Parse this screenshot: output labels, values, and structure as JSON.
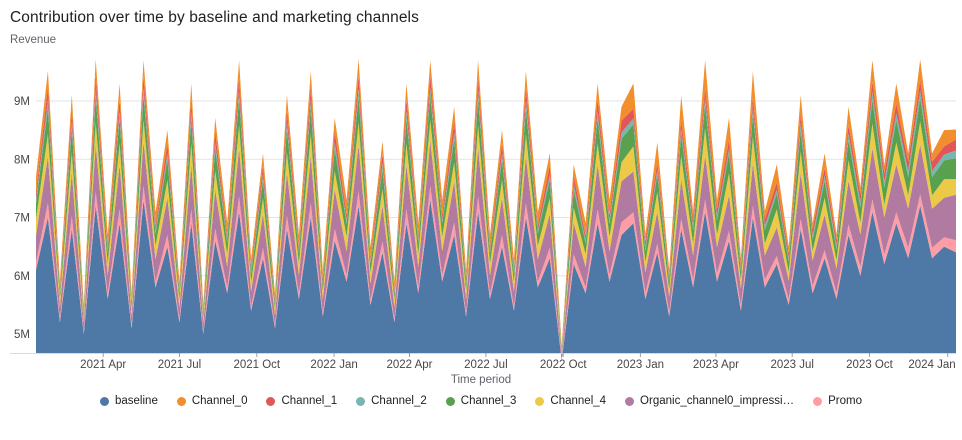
{
  "chart_data": {
    "type": "area",
    "stacked": true,
    "title": "Contribution over time by baseline and marketing channels",
    "ylabel": "Revenue",
    "xlabel": "Time period",
    "value_unit": "millions",
    "ylim": [
      4.67,
      9.82
    ],
    "grid": "horizontal",
    "legend_position": "bottom",
    "x_range": {
      "start": "2021 Jan",
      "end": "2024 Jan",
      "points": 78,
      "interval": "biweekly"
    },
    "y_ticks": [
      {
        "label": "5M",
        "value": 5
      },
      {
        "label": "6M",
        "value": 6
      },
      {
        "label": "7M",
        "value": 7
      },
      {
        "label": "8M",
        "value": 8
      },
      {
        "label": "9M",
        "value": 9
      }
    ],
    "x_ticks": [
      {
        "label": "2021 Apr",
        "f": 0.073
      },
      {
        "label": "2021 Jul",
        "f": 0.156
      },
      {
        "label": "2021 Oct",
        "f": 0.24
      },
      {
        "label": "2022 Jan",
        "f": 0.324
      },
      {
        "label": "2022 Apr",
        "f": 0.406
      },
      {
        "label": "2022 Jul",
        "f": 0.489
      },
      {
        "label": "2022 Oct",
        "f": 0.573
      },
      {
        "label": "2023 Jan",
        "f": 0.657
      },
      {
        "label": "2023 Apr",
        "f": 0.739
      },
      {
        "label": "2023 Jul",
        "f": 0.822
      },
      {
        "label": "2023 Oct",
        "f": 0.906
      },
      {
        "label": "2024 Jan",
        "f": 0.991
      }
    ],
    "stack_order_bottom_to_top": [
      "baseline",
      "Promo",
      "Organic_channel0_impressi…",
      "Channel_4",
      "Channel_3",
      "Channel_2",
      "Channel_1",
      "Channel_0"
    ],
    "series": [
      {
        "name": "baseline",
        "color": "#4e79a7",
        "values": [
          6.1,
          7.0,
          5.2,
          6.8,
          5.0,
          7.2,
          5.6,
          6.9,
          5.1,
          7.3,
          5.8,
          6.5,
          5.2,
          6.9,
          5.0,
          6.6,
          5.7,
          7.1,
          5.4,
          6.3,
          5.1,
          6.8,
          5.6,
          7.0,
          5.3,
          6.6,
          5.9,
          7.2,
          5.5,
          6.4,
          5.2,
          6.9,
          5.7,
          7.3,
          5.9,
          6.7,
          5.3,
          7.1,
          5.6,
          6.5,
          5.4,
          7.0,
          5.8,
          6.3,
          4.55,
          6.2,
          5.7,
          6.9,
          5.9,
          6.7,
          6.9,
          5.6,
          6.4,
          5.3,
          6.8,
          5.8,
          7.1,
          5.9,
          6.6,
          5.4,
          7.0,
          5.8,
          6.2,
          5.5,
          6.8,
          5.7,
          6.3,
          5.6,
          6.7,
          6.0,
          7.1,
          6.2,
          6.9,
          6.3,
          7.2,
          6.3,
          6.5,
          6.4
        ]
      },
      {
        "name": "Channel_0",
        "color": "#f28e2b",
        "values": [
          0.29,
          0.28,
          0.13,
          0.25,
          0.09,
          0.28,
          0.2,
          0.26,
          0.11,
          0.26,
          0.23,
          0.22,
          0.13,
          0.26,
          0.09,
          0.23,
          0.22,
          0.29,
          0.16,
          0.2,
          0.11,
          0.25,
          0.2,
          0.28,
          0.14,
          0.23,
          0.25,
          0.28,
          0.18,
          0.21,
          0.13,
          0.26,
          0.22,
          0.26,
          0.25,
          0.24,
          0.14,
          0.29,
          0.2,
          0.22,
          0.16,
          0.28,
          0.23,
          0.2,
          0.05,
          0.19,
          0.22,
          0.26,
          0.25,
          0.24,
          0.43,
          0.12,
          0.34,
          0.09,
          0.41,
          0.14,
          0.47,
          0.15,
          0.38,
          0.1,
          0.45,
          0.14,
          0.31,
          0.11,
          0.32,
          0.1,
          0.25,
          0.09,
          0.31,
          0.12,
          0.36,
          0.14,
          0.34,
          0.14,
          0.35,
          0.14,
          0.28,
          0.17
        ]
      },
      {
        "name": "Channel_1",
        "color": "#e15759",
        "values": [
          0.11,
          0.23,
          0.05,
          0.21,
          0.04,
          0.23,
          0.08,
          0.22,
          0.04,
          0.22,
          0.09,
          0.18,
          0.05,
          0.22,
          0.04,
          0.19,
          0.08,
          0.23,
          0.06,
          0.16,
          0.04,
          0.21,
          0.08,
          0.23,
          0.06,
          0.19,
          0.1,
          0.23,
          0.07,
          0.17,
          0.05,
          0.22,
          0.08,
          0.22,
          0.1,
          0.2,
          0.06,
          0.23,
          0.08,
          0.18,
          0.06,
          0.23,
          0.09,
          0.16,
          0.02,
          0.15,
          0.08,
          0.22,
          0.1,
          0.2,
          0.17,
          0.1,
          0.13,
          0.07,
          0.16,
          0.12,
          0.18,
          0.13,
          0.15,
          0.08,
          0.18,
          0.12,
          0.12,
          0.09,
          0.16,
          0.11,
          0.13,
          0.1,
          0.15,
          0.14,
          0.18,
          0.15,
          0.17,
          0.16,
          0.18,
          0.16,
          0.14,
          0.19
        ]
      },
      {
        "name": "Channel_2",
        "color": "#76b7b2",
        "values": [
          0.06,
          0.13,
          0.03,
          0.12,
          0.02,
          0.13,
          0.04,
          0.12,
          0.02,
          0.12,
          0.05,
          0.1,
          0.03,
          0.12,
          0.02,
          0.11,
          0.05,
          0.13,
          0.04,
          0.09,
          0.02,
          0.12,
          0.04,
          0.13,
          0.03,
          0.11,
          0.06,
          0.13,
          0.04,
          0.1,
          0.03,
          0.12,
          0.05,
          0.12,
          0.06,
          0.11,
          0.03,
          0.13,
          0.04,
          0.1,
          0.04,
          0.13,
          0.05,
          0.09,
          0.01,
          0.09,
          0.05,
          0.12,
          0.06,
          0.11,
          0.1,
          0.06,
          0.08,
          0.04,
          0.09,
          0.07,
          0.1,
          0.07,
          0.08,
          0.05,
          0.1,
          0.07,
          0.07,
          0.05,
          0.12,
          0.07,
          0.09,
          0.07,
          0.11,
          0.09,
          0.13,
          0.1,
          0.12,
          0.11,
          0.13,
          0.11,
          0.1,
          0.13
        ]
      },
      {
        "name": "Channel_3",
        "color": "#59a14f",
        "values": [
          0.26,
          0.45,
          0.11,
          0.41,
          0.08,
          0.45,
          0.18,
          0.43,
          0.1,
          0.43,
          0.21,
          0.36,
          0.11,
          0.43,
          0.08,
          0.38,
          0.19,
          0.47,
          0.14,
          0.32,
          0.1,
          0.41,
          0.18,
          0.45,
          0.13,
          0.38,
          0.22,
          0.45,
          0.16,
          0.34,
          0.11,
          0.43,
          0.19,
          0.43,
          0.22,
          0.4,
          0.13,
          0.47,
          0.18,
          0.36,
          0.14,
          0.45,
          0.21,
          0.32,
          0.04,
          0.31,
          0.19,
          0.43,
          0.22,
          0.4,
          0.38,
          0.2,
          0.3,
          0.14,
          0.37,
          0.23,
          0.42,
          0.25,
          0.34,
          0.16,
          0.4,
          0.23,
          0.27,
          0.18,
          0.37,
          0.2,
          0.29,
          0.19,
          0.35,
          0.26,
          0.42,
          0.29,
          0.38,
          0.31,
          0.4,
          0.31,
          0.32,
          0.36
        ]
      },
      {
        "name": "Channel_4",
        "color": "#edc948",
        "values": [
          0.29,
          0.38,
          0.13,
          0.35,
          0.09,
          0.38,
          0.2,
          0.36,
          0.11,
          0.36,
          0.23,
          0.3,
          0.13,
          0.36,
          0.09,
          0.32,
          0.22,
          0.39,
          0.16,
          0.27,
          0.11,
          0.35,
          0.2,
          0.38,
          0.14,
          0.32,
          0.25,
          0.38,
          0.18,
          0.29,
          0.13,
          0.36,
          0.22,
          0.36,
          0.25,
          0.33,
          0.14,
          0.39,
          0.2,
          0.3,
          0.16,
          0.38,
          0.23,
          0.27,
          0.05,
          0.26,
          0.22,
          0.36,
          0.25,
          0.33,
          0.43,
          0.17,
          0.34,
          0.12,
          0.41,
          0.2,
          0.47,
          0.21,
          0.38,
          0.14,
          0.45,
          0.2,
          0.31,
          0.15,
          0.37,
          0.16,
          0.29,
          0.14,
          0.35,
          0.2,
          0.42,
          0.22,
          0.38,
          0.23,
          0.4,
          0.23,
          0.32,
          0.27
        ]
      },
      {
        "name": "Organic_channel0_impressi…",
        "color": "#b07aa1",
        "values": [
          0.46,
          0.8,
          0.2,
          0.74,
          0.15,
          0.8,
          0.32,
          0.77,
          0.17,
          0.77,
          0.38,
          0.64,
          0.2,
          0.77,
          0.15,
          0.67,
          0.35,
          0.83,
          0.26,
          0.58,
          0.17,
          0.74,
          0.32,
          0.8,
          0.23,
          0.67,
          0.41,
          0.8,
          0.29,
          0.61,
          0.2,
          0.77,
          0.35,
          0.77,
          0.41,
          0.7,
          0.23,
          0.83,
          0.32,
          0.64,
          0.26,
          0.8,
          0.38,
          0.58,
          0.07,
          0.54,
          0.35,
          0.77,
          0.41,
          0.7,
          0.7,
          0.35,
          0.55,
          0.26,
          0.67,
          0.42,
          0.75,
          0.45,
          0.61,
          0.29,
          0.73,
          0.42,
          0.49,
          0.32,
          0.78,
          0.44,
          0.61,
          0.41,
          0.75,
          0.56,
          0.88,
          0.63,
          0.82,
          0.67,
          0.85,
          0.67,
          0.68,
          0.78
        ]
      },
      {
        "name": "Promo",
        "color": "#ff9da7",
        "values": [
          0.13,
          0.25,
          0.06,
          0.23,
          0.04,
          0.25,
          0.09,
          0.24,
          0.05,
          0.24,
          0.1,
          0.2,
          0.06,
          0.24,
          0.04,
          0.21,
          0.1,
          0.26,
          0.07,
          0.18,
          0.05,
          0.23,
          0.09,
          0.25,
          0.06,
          0.21,
          0.11,
          0.25,
          0.08,
          0.19,
          0.06,
          0.24,
          0.1,
          0.24,
          0.11,
          0.22,
          0.06,
          0.26,
          0.09,
          0.2,
          0.07,
          0.25,
          0.1,
          0.18,
          0.02,
          0.17,
          0.1,
          0.24,
          0.11,
          0.22,
          0.19,
          0.11,
          0.15,
          0.08,
          0.18,
          0.13,
          0.21,
          0.14,
          0.17,
          0.09,
          0.2,
          0.13,
          0.14,
          0.1,
          0.18,
          0.12,
          0.14,
          0.11,
          0.18,
          0.15,
          0.21,
          0.17,
          0.19,
          0.18,
          0.2,
          0.18,
          0.16,
          0.21
        ]
      }
    ],
    "colors": {
      "grid": "#e2e3e5",
      "axis_line": "#d8dade",
      "tick_mark": "#9aa0a6",
      "tick_label": "#474747"
    }
  }
}
